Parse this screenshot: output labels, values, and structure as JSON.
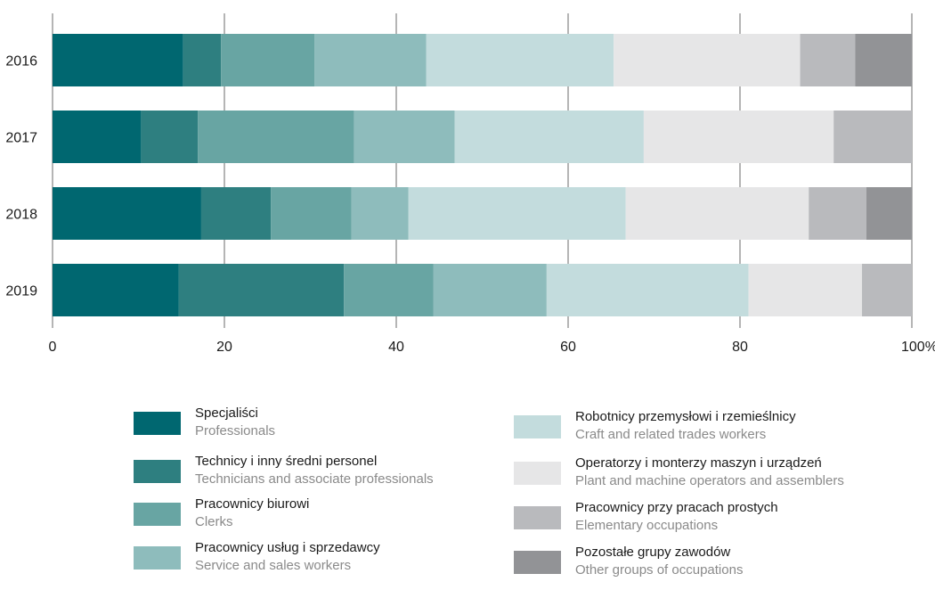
{
  "chart_data": {
    "type": "bar",
    "orientation": "horizontal",
    "stacked": true,
    "percent": true,
    "categories": [
      "2016",
      "2017",
      "2018",
      "2019"
    ],
    "xlim": [
      0,
      100
    ],
    "xticks": [
      "0",
      "20",
      "40",
      "60",
      "80",
      "100%"
    ],
    "xtick_values": [
      0,
      20,
      40,
      60,
      80,
      100
    ],
    "grid": "vertical",
    "legend_position": "bottom",
    "series": [
      {
        "name": "Specjaliści",
        "name_en": "Professionals",
        "color": "#006770",
        "values": [
          15.2,
          10.3,
          17.3,
          14.7
        ]
      },
      {
        "name": "Technicy i inny średni personel",
        "name_en": "Technicians and associate professionals",
        "color": "#2e7f80",
        "values": [
          4.4,
          6.6,
          8.1,
          19.2
        ]
      },
      {
        "name": "Pracownicy biurowi",
        "name_en": "Clerks",
        "color": "#68a5a3",
        "values": [
          10.9,
          18.2,
          9.4,
          10.4
        ]
      },
      {
        "name": "Pracownicy usług  i sprzedawcy",
        "name_en": "Service and sales workers",
        "color": "#8ebcbc",
        "values": [
          13.0,
          11.7,
          6.6,
          13.2
        ]
      },
      {
        "name": "Robotnicy przemysłowi i rzemieślnicy",
        "name_en": "Craft and related trades workers",
        "color": "#c3dcdd",
        "values": [
          21.8,
          22.0,
          25.3,
          23.5
        ]
      },
      {
        "name": "Operatorzy i monterzy maszyn i urządzeń",
        "name_en": "Plant and machine operators and assemblers",
        "color": "#e6e6e7",
        "values": [
          21.7,
          22.1,
          21.3,
          13.2
        ]
      },
      {
        "name": "Pracownicy przy pracach prostych",
        "name_en": "Elementary occupations",
        "color": "#b9babd",
        "values": [
          6.4,
          9.1,
          6.7,
          5.8
        ]
      },
      {
        "name": "Pozostałe grupy zawodów",
        "name_en": "Other groups of occupations",
        "color": "#929396",
        "values": [
          6.6,
          0,
          5.3,
          0
        ]
      }
    ]
  }
}
